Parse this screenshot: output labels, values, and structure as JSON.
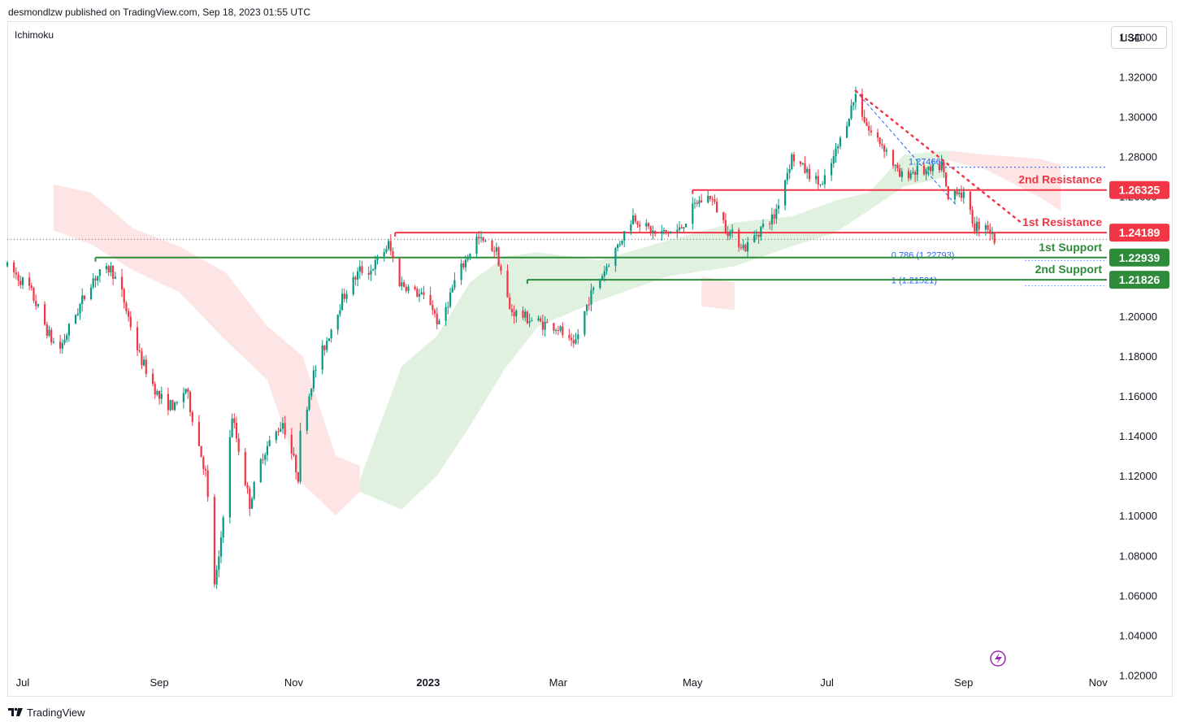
{
  "header": {
    "attribution": "desmondlzw published on TradingView.com, Sep 18, 2023 01:55 UTC",
    "indicator": "Ichimoku",
    "currency": "USD",
    "footer_brand": "TradingView"
  },
  "colors": {
    "bull": "#089981",
    "bear": "#f23645",
    "resistance": "#f23645",
    "support": "#2e8b3a",
    "fib": "#2962ff",
    "cloud_bull": "#d6ecd4",
    "cloud_bear": "#fcdcdc"
  },
  "chart_data": {
    "type": "candlestick",
    "symbol_currency": "USD",
    "y_axis": {
      "ylim": [
        1.01,
        1.3475
      ],
      "ticks": [
        "1.34000",
        "1.32000",
        "1.30000",
        "1.28000",
        "1.26000",
        "1.24000",
        "1.22000",
        "1.20000",
        "1.18000",
        "1.16000",
        "1.14000",
        "1.12000",
        "1.10000",
        "1.08000",
        "1.06000",
        "1.04000",
        "1.02000"
      ]
    },
    "x_axis": {
      "range": [
        "2022-06-24",
        "2023-11-05"
      ],
      "ticks": [
        {
          "label": "Jul",
          "date": "2022-07-01"
        },
        {
          "label": "Sep",
          "date": "2022-09-01"
        },
        {
          "label": "Nov",
          "date": "2022-11-01"
        },
        {
          "label": "2023",
          "date": "2023-01-01",
          "bold": true
        },
        {
          "label": "Mar",
          "date": "2023-03-01"
        },
        {
          "label": "May",
          "date": "2023-05-01"
        },
        {
          "label": "Jul",
          "date": "2023-07-01"
        },
        {
          "label": "Sep",
          "date": "2023-09-01"
        },
        {
          "label": "Nov",
          "date": "2023-11-01"
        }
      ]
    },
    "price_path": [
      [
        "2022-06-24",
        1.225
      ],
      [
        "2022-07-04",
        1.214
      ],
      [
        "2022-07-14",
        1.188
      ],
      [
        "2022-07-18",
        1.184
      ],
      [
        "2022-07-25",
        1.201
      ],
      [
        "2022-08-02",
        1.219
      ],
      [
        "2022-08-10",
        1.224
      ],
      [
        "2022-08-15",
        1.211
      ],
      [
        "2022-08-23",
        1.18
      ],
      [
        "2022-09-01",
        1.159
      ],
      [
        "2022-09-08",
        1.154
      ],
      [
        "2022-09-13",
        1.164
      ],
      [
        "2022-09-16",
        1.149
      ],
      [
        "2022-09-22",
        1.121
      ],
      [
        "2022-09-26",
        1.066
      ],
      [
        "2022-09-28",
        1.077
      ],
      [
        "2022-10-04",
        1.15
      ],
      [
        "2022-10-12",
        1.106
      ],
      [
        "2022-10-18",
        1.131
      ],
      [
        "2022-10-27",
        1.147
      ],
      [
        "2022-11-03",
        1.12
      ],
      [
        "2022-11-04",
        1.14
      ],
      [
        "2022-11-10",
        1.171
      ],
      [
        "2022-11-16",
        1.188
      ],
      [
        "2022-11-23",
        1.209
      ],
      [
        "2022-12-01",
        1.223
      ],
      [
        "2022-12-06",
        1.223
      ],
      [
        "2022-12-14",
        1.236
      ],
      [
        "2022-12-19",
        1.217
      ],
      [
        "2023-01-02",
        1.207
      ],
      [
        "2023-01-06",
        1.195
      ],
      [
        "2023-01-13",
        1.217
      ],
      [
        "2023-01-23",
        1.239
      ],
      [
        "2023-02-01",
        1.233
      ],
      [
        "2023-02-07",
        1.203
      ],
      [
        "2023-02-17",
        1.198
      ],
      [
        "2023-03-01",
        1.194
      ],
      [
        "2023-03-08",
        1.184
      ],
      [
        "2023-03-15",
        1.209
      ],
      [
        "2023-03-23",
        1.225
      ],
      [
        "2023-04-04",
        1.25
      ],
      [
        "2023-04-14",
        1.241
      ],
      [
        "2023-04-25",
        1.243
      ],
      [
        "2023-05-03",
        1.257
      ],
      [
        "2023-05-09",
        1.26
      ],
      [
        "2023-05-17",
        1.243
      ],
      [
        "2023-05-25",
        1.234
      ],
      [
        "2023-05-31",
        1.243
      ],
      [
        "2023-06-07",
        1.25
      ],
      [
        "2023-06-15",
        1.28
      ],
      [
        "2023-06-23",
        1.271
      ],
      [
        "2023-06-29",
        1.265
      ],
      [
        "2023-07-06",
        1.285
      ],
      [
        "2023-07-14",
        1.311
      ],
      [
        "2023-07-20",
        1.293
      ],
      [
        "2023-07-27",
        1.285
      ],
      [
        "2023-08-03",
        1.27
      ],
      [
        "2023-08-10",
        1.273
      ],
      [
        "2023-08-17",
        1.272
      ],
      [
        "2023-08-22",
        1.276
      ],
      [
        "2023-08-25",
        1.258
      ],
      [
        "2023-08-29",
        1.264
      ],
      [
        "2023-09-01",
        1.26
      ],
      [
        "2023-09-06",
        1.245
      ],
      [
        "2023-09-11",
        1.247
      ],
      [
        "2023-09-15",
        1.238
      ]
    ],
    "ichimoku_cloud": {
      "bear_segments": [
        [
          [
            "2022-07-15",
            1.266,
            1.243
          ],
          [
            "2022-08-01",
            1.262,
            1.236
          ],
          [
            "2022-08-20",
            1.244,
            1.223
          ],
          [
            "2022-09-10",
            1.235,
            1.212
          ],
          [
            "2022-10-01",
            1.222,
            1.188
          ],
          [
            "2022-10-20",
            1.195,
            1.168
          ],
          [
            "2022-11-05",
            1.18,
            1.116
          ],
          [
            "2022-11-20",
            1.13,
            1.1
          ],
          [
            "2022-12-01",
            1.125,
            1.112
          ]
        ],
        [
          [
            "2023-05-05",
            1.22,
            1.205
          ],
          [
            "2023-05-20",
            1.217,
            1.203
          ]
        ],
        [
          [
            "2023-08-25",
            1.283,
            1.278
          ],
          [
            "2023-09-10",
            1.281,
            1.274
          ],
          [
            "2023-10-05",
            1.279,
            1.26
          ],
          [
            "2023-10-15",
            1.276,
            1.253
          ]
        ]
      ],
      "bull_segments": [
        [
          [
            "2022-12-01",
            1.118,
            1.112
          ],
          [
            "2022-12-20",
            1.175,
            1.103
          ],
          [
            "2023-01-05",
            1.19,
            1.12
          ],
          [
            "2023-01-20",
            1.217,
            1.145
          ],
          [
            "2023-02-05",
            1.23,
            1.174
          ],
          [
            "2023-02-20",
            1.232,
            1.195
          ],
          [
            "2023-03-20",
            1.228,
            1.208
          ],
          [
            "2023-04-20",
            1.238,
            1.22
          ],
          [
            "2023-05-20",
            1.247,
            1.225
          ],
          [
            "2023-06-15",
            1.25,
            1.235
          ],
          [
            "2023-07-05",
            1.258,
            1.242
          ],
          [
            "2023-07-20",
            1.262,
            1.253
          ],
          [
            "2023-08-05",
            1.281,
            1.265
          ],
          [
            "2023-08-25",
            1.283,
            1.27
          ]
        ]
      ]
    },
    "horizontal_levels": [
      {
        "label": "2nd Resistance",
        "price_label": "1.26325",
        "value": 1.26325,
        "kind": "resistance",
        "start": "2023-05-01"
      },
      {
        "label": "1st Resistance",
        "price_label": "1.24189",
        "value": 1.24189,
        "kind": "resistance",
        "start": "2022-12-17"
      },
      {
        "label": "1st Support",
        "price_label": "1.22939",
        "value": 1.22939,
        "kind": "support",
        "start": "2022-08-03"
      },
      {
        "label": "2nd Support",
        "price_label": "1.21826",
        "value": 1.21826,
        "kind": "support",
        "start": "2023-02-15"
      }
    ],
    "trendline": {
      "from": [
        "2023-07-14",
        1.313
      ],
      "to": [
        "2023-09-27",
        1.247
      ],
      "style": "dotted",
      "kind": "resistance"
    },
    "fibonacci": {
      "from": [
        "2023-07-14",
        1.313
      ],
      "levels": [
        {
          "text": "1.27466)",
          "value": 1.27466,
          "start": "2023-08-07"
        },
        {
          "text": "0.786 (1.22793)",
          "value": 1.22793,
          "start": "2023-08-25"
        },
        {
          "text": "1 (1.21521)",
          "value": 1.21521,
          "start": "2023-08-25"
        }
      ]
    },
    "last_price": 1.2385
  }
}
